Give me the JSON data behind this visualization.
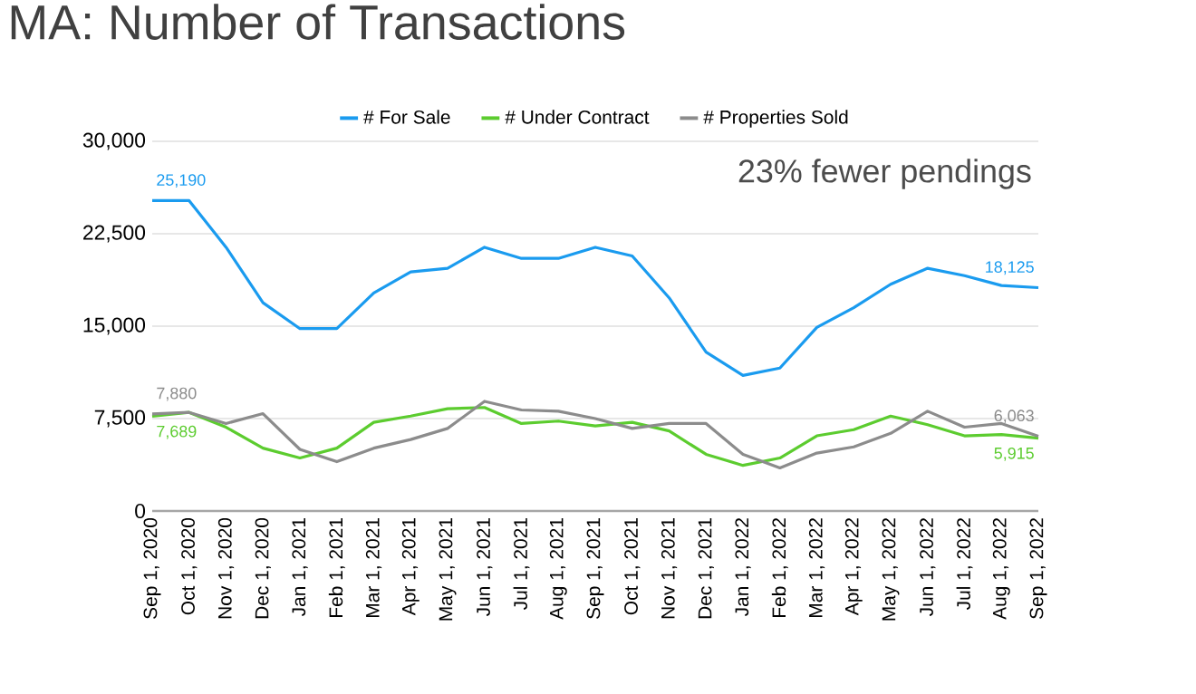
{
  "chart_data": {
    "type": "line",
    "title": "MA: Number of Transactions",
    "categories": [
      "Sep 1, 2020",
      "Oct 1, 2020",
      "Nov 1, 2020",
      "Dec 1, 2020",
      "Jan 1, 2021",
      "Feb 1, 2021",
      "Mar 1, 2021",
      "Apr 1, 2021",
      "May 1, 2021",
      "Jun 1, 2021",
      "Jul 1, 2021",
      "Aug 1, 2021",
      "Sep 1, 2021",
      "Oct 1, 2021",
      "Nov 1, 2021",
      "Dec 1, 2021",
      "Jan 1, 2022",
      "Feb 1, 2022",
      "Mar 1, 2022",
      "Apr 1, 2022",
      "May 1, 2022",
      "Jun 1, 2022",
      "Jul 1, 2022",
      "Aug 1, 2022",
      "Sep 1, 2022"
    ],
    "series": [
      {
        "name": "# For Sale",
        "color": "#1a9bef",
        "values": [
          25190,
          25190,
          21400,
          16900,
          14800,
          14800,
          17700,
          19400,
          19700,
          21400,
          20500,
          20500,
          21400,
          20700,
          17300,
          12900,
          11000,
          11600,
          14900,
          16500,
          18400,
          19700,
          19100,
          18300,
          18125
        ],
        "value_labels": [
          "25,190",
          null,
          null,
          null,
          null,
          null,
          null,
          null,
          null,
          null,
          null,
          null,
          null,
          null,
          null,
          null,
          null,
          null,
          null,
          null,
          null,
          null,
          null,
          null,
          "18,125"
        ]
      },
      {
        "name": "# Under Contract",
        "color": "#5ccc2f",
        "values": [
          7689,
          8000,
          6800,
          5100,
          4300,
          5100,
          7200,
          7700,
          8300,
          8400,
          7100,
          7300,
          6900,
          7200,
          6500,
          4600,
          3700,
          4300,
          6100,
          6600,
          7700,
          7000,
          6100,
          6200,
          5915
        ],
        "value_labels": [
          "7,689",
          null,
          null,
          null,
          null,
          null,
          null,
          null,
          null,
          null,
          null,
          null,
          null,
          null,
          null,
          null,
          null,
          null,
          null,
          null,
          null,
          null,
          null,
          null,
          "5,915"
        ]
      },
      {
        "name": "# Properties Sold",
        "color": "#8c8c8c",
        "values": [
          7880,
          8000,
          7100,
          7900,
          5000,
          4000,
          5100,
          5800,
          6700,
          8900,
          8200,
          8100,
          7500,
          6700,
          7100,
          7100,
          4600,
          3500,
          4700,
          5200,
          6300,
          8100,
          6800,
          7100,
          6063
        ],
        "value_labels": [
          "7,880",
          null,
          null,
          null,
          null,
          null,
          null,
          null,
          null,
          null,
          null,
          null,
          null,
          null,
          null,
          null,
          null,
          null,
          null,
          null,
          null,
          null,
          null,
          null,
          "6,063"
        ]
      }
    ],
    "ylim": [
      0,
      30000
    ],
    "yticks": [
      {
        "value": 0,
        "label": "0"
      },
      {
        "value": 7500,
        "label": "7,500"
      },
      {
        "value": 15000,
        "label": "15,000"
      },
      {
        "value": 22500,
        "label": "22,500"
      },
      {
        "value": 30000,
        "label": "30,000"
      }
    ],
    "grid": "y",
    "legend": "top",
    "marker": "none",
    "line_style": "solid",
    "annotations": [
      "23% fewer pendings"
    ]
  }
}
